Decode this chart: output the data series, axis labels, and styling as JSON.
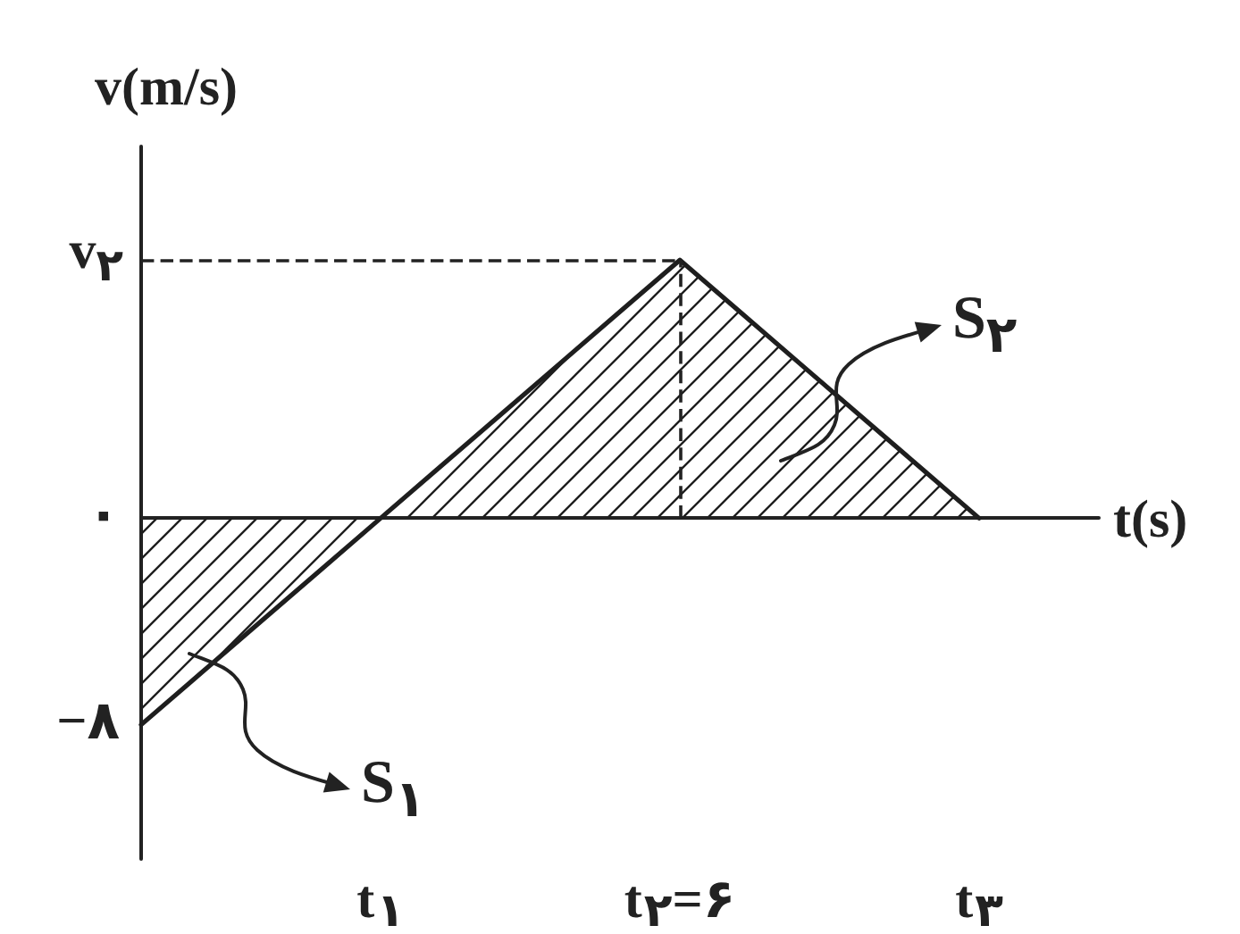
{
  "chart_data": {
    "type": "area",
    "xlabel": "t(s)",
    "ylabel": "v(m/s)",
    "categories": [
      null,
      null,
      null,
      null,
      "t$_{۱}$",
      null,
      null,
      null,
      null,
      "t$_{۲}$=۶",
      null,
      null,
      null,
      null,
      "t$_{۳}$",
      null,
      null
    ],
    "values": [
      -8,
      -6,
      -4,
      -2,
      0,
      2,
      4,
      6,
      8,
      10,
      8,
      6,
      4,
      2,
      0,
      null,
      null
    ],
    "color": "#1e1e1e",
    "marker": "none",
    "ylim": [
      -13.2,
      14.4
    ],
    "yticks": [
      {
        "value": 0,
        "label": "۰"
      },
      {
        "value": -8,
        "label": "−۸"
      }
    ],
    "ref_lines": [
      {
        "axis": "y",
        "value": 10,
        "label": "v$_{۲}$",
        "line_style": "dashed"
      },
      {
        "axis": "x",
        "value": "t$_{۲}$=۶",
        "line_style": "dashed"
      }
    ],
    "annotations": [
      "S$_{۲}$",
      "S$_{۱}$"
    ]
  }
}
